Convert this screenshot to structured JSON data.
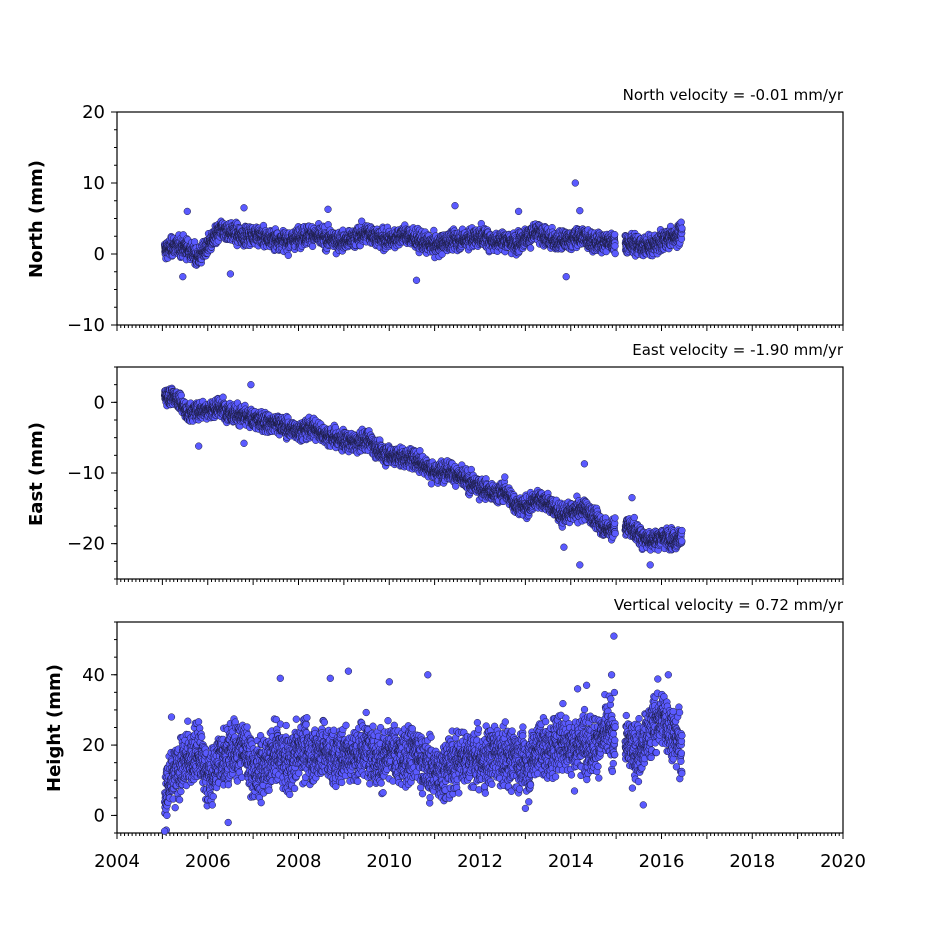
{
  "chart_data": [
    {
      "type": "scatter",
      "ylabel": "North (mm)",
      "annotation": "North velocity = -0.01 mm/yr",
      "xlim": [
        2004,
        2020
      ],
      "ylim": [
        -10,
        20
      ],
      "yticks": [
        -10,
        0,
        10,
        20
      ],
      "ytick_labels": [
        "−10",
        "0",
        "10",
        "20"
      ],
      "show_xtick_labels": false,
      "series": [
        {
          "color": "#5a5aff",
          "x": [
            2005.05,
            2005.3,
            2005.55,
            2005.8,
            2006.05,
            2006.3,
            2006.55,
            2006.8,
            2007.05,
            2007.3,
            2007.55,
            2007.8,
            2008.05,
            2008.3,
            2008.55,
            2008.8,
            2009.05,
            2009.3,
            2009.55,
            2009.8,
            2010.05,
            2010.3,
            2010.55,
            2010.8,
            2011.05,
            2011.3,
            2011.55,
            2011.8,
            2012.05,
            2012.3,
            2012.55,
            2012.8,
            2013.05,
            2013.3,
            2013.55,
            2013.8,
            2014.05,
            2014.3,
            2014.55,
            2014.8,
            2015.3,
            2015.55,
            2015.8,
            2016.05,
            2016.3,
            2016.45
          ],
          "y": [
            0.5,
            1.2,
            0.8,
            -0.5,
            1.5,
            3.5,
            3.0,
            2.5,
            2.8,
            2.2,
            2.0,
            1.8,
            2.5,
            2.8,
            2.2,
            2.0,
            1.8,
            2.5,
            3.0,
            2.2,
            2.0,
            2.8,
            2.2,
            1.5,
            1.2,
            1.8,
            2.0,
            2.2,
            2.5,
            1.8,
            2.0,
            1.5,
            2.5,
            3.0,
            2.0,
            1.8,
            2.2,
            2.5,
            1.5,
            1.8,
            1.5,
            1.2,
            1.0,
            2.0,
            2.5,
            3.0
          ],
          "outliers": {
            "x": [
              2005.45,
              2005.55,
              2006.5,
              2006.8,
              2008.65,
              2010.6,
              2011.45,
              2012.85,
              2013.9,
              2014.1,
              2014.2
            ],
            "y": [
              -3.2,
              6.0,
              -2.8,
              6.5,
              6.3,
              -3.7,
              6.8,
              6.0,
              -3.2,
              10.0,
              6.1
            ]
          }
        }
      ]
    },
    {
      "type": "scatter",
      "ylabel": "East (mm)",
      "annotation": "East velocity = -1.90 mm/yr",
      "xlim": [
        2004,
        2020
      ],
      "ylim": [
        -25,
        5
      ],
      "yticks": [
        -20,
        -10,
        0
      ],
      "ytick_labels": [
        "−20",
        "−10",
        "0"
      ],
      "show_xtick_labels": false,
      "series": [
        {
          "color": "#5a5aff",
          "x": [
            2005.05,
            2005.3,
            2005.55,
            2005.8,
            2006.05,
            2006.3,
            2006.55,
            2006.8,
            2007.05,
            2007.3,
            2007.55,
            2007.8,
            2008.05,
            2008.3,
            2008.55,
            2008.8,
            2009.05,
            2009.3,
            2009.55,
            2009.8,
            2010.05,
            2010.3,
            2010.55,
            2010.8,
            2011.05,
            2011.3,
            2011.55,
            2011.8,
            2012.05,
            2012.3,
            2012.55,
            2012.8,
            2013.05,
            2013.3,
            2013.55,
            2013.8,
            2014.05,
            2014.3,
            2014.55,
            2014.8,
            2015.3,
            2015.55,
            2015.8,
            2016.05,
            2016.3,
            2016.45
          ],
          "y": [
            1.0,
            0.8,
            -1.5,
            -1.2,
            -1.0,
            -0.8,
            -1.5,
            -2.0,
            -2.5,
            -2.8,
            -3.0,
            -3.8,
            -4.0,
            -3.5,
            -4.5,
            -5.0,
            -5.5,
            -5.8,
            -5.2,
            -7.0,
            -7.5,
            -7.8,
            -8.0,
            -9.0,
            -10.0,
            -9.5,
            -10.5,
            -11.5,
            -12.0,
            -13.0,
            -12.5,
            -14.5,
            -14.8,
            -13.5,
            -14.5,
            -16.0,
            -15.5,
            -15.0,
            -16.5,
            -18.0,
            -17.5,
            -19.0,
            -19.5,
            -19.0,
            -19.5,
            -19.0
          ],
          "outliers": {
            "x": [
              2005.8,
              2006.8,
              2006.95,
              2013.85,
              2014.2,
              2014.3,
              2015.35,
              2015.75
            ],
            "y": [
              -6.2,
              -5.8,
              2.5,
              -20.5,
              -23.0,
              -8.7,
              -13.5,
              -23.0
            ]
          }
        }
      ]
    },
    {
      "type": "scatter",
      "ylabel": "Height (mm)",
      "annotation": "Vertical velocity = 0.72 mm/yr",
      "xlim": [
        2004,
        2020
      ],
      "ylim": [
        -5,
        55
      ],
      "yticks": [
        0,
        20,
        40
      ],
      "ytick_labels": [
        "0",
        "20",
        "40"
      ],
      "xticks": [
        2004,
        2006,
        2008,
        2010,
        2012,
        2014,
        2016,
        2018,
        2020
      ],
      "xtick_labels": [
        "2004",
        "2006",
        "2008",
        "2010",
        "2012",
        "2014",
        "2016",
        "2018",
        "2020"
      ],
      "show_xtick_labels": true,
      "series": [
        {
          "color": "#5a5aff",
          "x": [
            2005.05,
            2005.3,
            2005.55,
            2005.8,
            2006.05,
            2006.3,
            2006.55,
            2006.8,
            2007.05,
            2007.3,
            2007.55,
            2007.8,
            2008.05,
            2008.3,
            2008.55,
            2008.8,
            2009.05,
            2009.3,
            2009.55,
            2009.8,
            2010.05,
            2010.3,
            2010.55,
            2010.8,
            2011.05,
            2011.3,
            2011.55,
            2011.8,
            2012.05,
            2012.3,
            2012.55,
            2012.8,
            2013.05,
            2013.3,
            2013.55,
            2013.8,
            2014.05,
            2014.3,
            2014.55,
            2014.8,
            2015.3,
            2015.55,
            2015.8,
            2016.05,
            2016.3,
            2016.45
          ],
          "y": [
            6,
            12,
            16,
            18,
            10,
            17,
            18,
            20,
            12,
            15,
            18,
            14,
            20,
            17,
            19,
            16,
            18,
            17,
            20,
            15,
            18,
            16,
            19,
            14,
            12,
            14,
            16,
            17,
            15,
            18,
            16,
            17,
            14,
            20,
            18,
            22,
            19,
            21,
            20,
            24,
            20,
            18,
            26,
            28,
            22,
            20
          ],
          "outliers": {
            "x": [
              2005.05,
              2005.1,
              2005.2,
              2006.45,
              2007.6,
              2008.7,
              2009.1,
              2010.0,
              2010.85,
              2013.0,
              2014.15,
              2014.35,
              2014.9,
              2014.95,
              2015.6,
              2016.15
            ],
            "y": [
              -4.5,
              0,
              28,
              -2,
              39,
              39,
              41,
              38,
              40,
              2,
              36,
              37,
              40,
              51,
              3,
              40
            ]
          }
        }
      ]
    }
  ]
}
